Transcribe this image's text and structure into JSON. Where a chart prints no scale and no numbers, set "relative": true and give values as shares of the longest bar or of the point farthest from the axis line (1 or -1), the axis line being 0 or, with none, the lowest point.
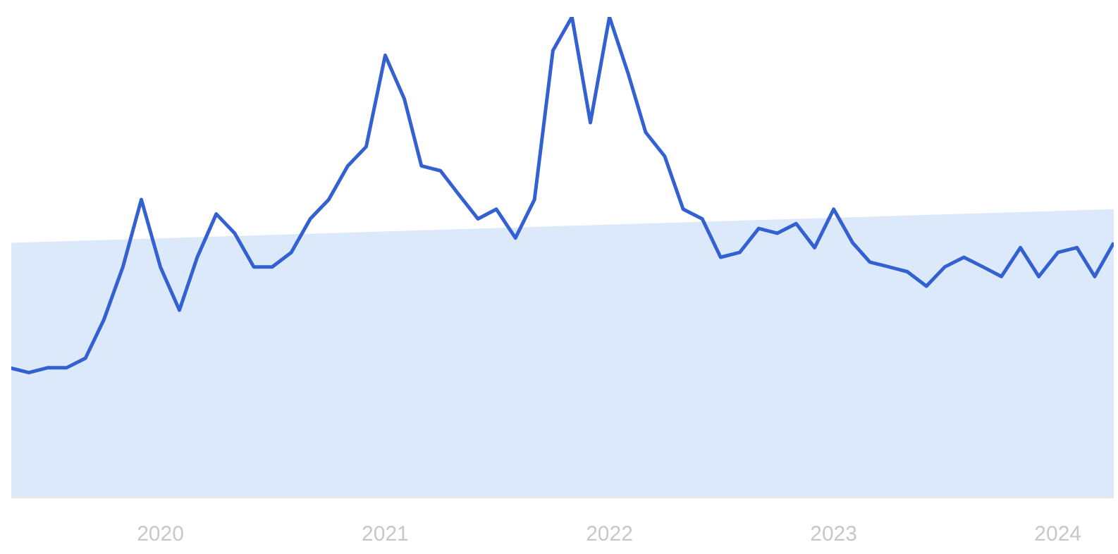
{
  "chart_data": {
    "type": "line",
    "relative": true,
    "xlim": [
      "2019-05",
      "2024-04"
    ],
    "xticks": [
      "2020",
      "2021",
      "2022",
      "2023",
      "2024"
    ],
    "x": [
      "2019-05",
      "2019-06",
      "2019-07",
      "2019-08",
      "2019-09",
      "2019-10",
      "2019-11",
      "2019-12",
      "2020-01",
      "2020-02",
      "2020-03",
      "2020-04",
      "2020-05",
      "2020-06",
      "2020-07",
      "2020-08",
      "2020-09",
      "2020-10",
      "2020-11",
      "2020-12",
      "2021-01",
      "2021-02",
      "2021-03",
      "2021-04",
      "2021-05",
      "2021-06",
      "2021-07",
      "2021-08",
      "2021-09",
      "2021-10",
      "2021-11",
      "2021-12",
      "2022-01",
      "2022-02",
      "2022-03",
      "2022-04",
      "2022-05",
      "2022-06",
      "2022-07",
      "2022-08",
      "2022-09",
      "2022-10",
      "2022-11",
      "2022-12",
      "2023-01",
      "2023-02",
      "2023-03",
      "2023-04",
      "2023-05",
      "2023-06",
      "2023-07",
      "2023-08",
      "2023-09",
      "2023-10",
      "2023-11",
      "2023-12",
      "2024-01",
      "2024-02",
      "2024-03",
      "2024-04"
    ],
    "series": [
      {
        "type": "area",
        "color": "#dce9fa",
        "x": [
          "2019-05",
          "2024-04"
        ],
        "values": [
          0.53,
          0.6
        ]
      },
      {
        "color": "#3461d1",
        "values": [
          0.27,
          0.26,
          0.27,
          0.27,
          0.29,
          0.37,
          0.48,
          0.62,
          0.48,
          0.39,
          0.5,
          0.59,
          0.55,
          0.48,
          0.48,
          0.51,
          0.58,
          0.62,
          0.69,
          0.73,
          0.92,
          0.83,
          0.69,
          0.68,
          0.63,
          0.58,
          0.6,
          0.54,
          0.62,
          0.93,
          1,
          0.78,
          1,
          0.88,
          0.76,
          0.71,
          0.6,
          0.58,
          0.5,
          0.51,
          0.56,
          0.55,
          0.57,
          0.52,
          0.6,
          0.53,
          0.49,
          0.48,
          0.47,
          0.44,
          0.48,
          0.5,
          0.48,
          0.46,
          0.52,
          0.46,
          0.51,
          0.52,
          0.46,
          0.53
        ]
      }
    ]
  }
}
